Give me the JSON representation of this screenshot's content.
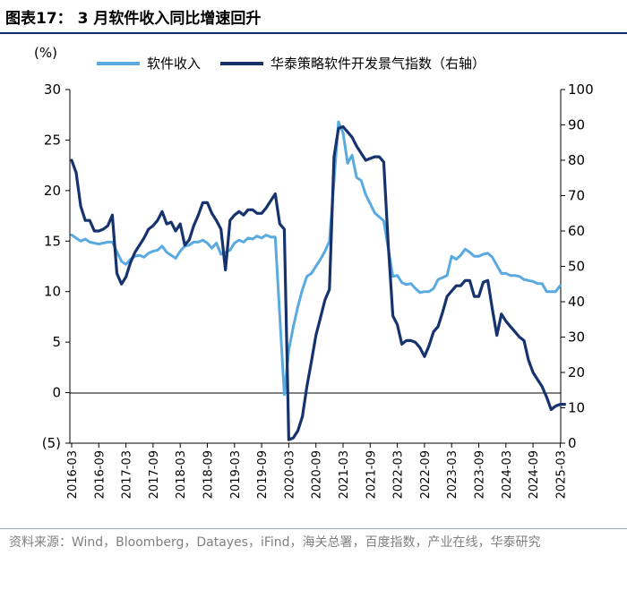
{
  "header": {
    "title": "图表17：  3 月软件收入同比增速回升"
  },
  "source": "资料来源：Wind，Bloomberg，Datayes，iFind，海关总署，百度指数，产业在线，华泰研究",
  "colors": {
    "revenue": "#5aaae0",
    "index": "#17336e",
    "title_rule": "#0d2b6b"
  },
  "chart_data": {
    "type": "line",
    "unit_left": "(%)",
    "y_left": {
      "range": [
        -5,
        30
      ],
      "ticks": [
        -5,
        0,
        5,
        10,
        15,
        20,
        25,
        30
      ],
      "tick_labels": [
        "(5)",
        "0",
        "5",
        "10",
        "15",
        "20",
        "25",
        "30"
      ]
    },
    "y_right": {
      "range": [
        0,
        100
      ],
      "ticks": [
        0,
        10,
        20,
        30,
        40,
        50,
        60,
        70,
        80,
        90,
        100
      ],
      "tick_labels": [
        "0",
        "10",
        "20",
        "30",
        "40",
        "50",
        "60",
        "70",
        "80",
        "90",
        "100"
      ]
    },
    "x_tick_labels": [
      "2016-03",
      "2016-09",
      "2017-03",
      "2017-09",
      "2018-03",
      "2018-09",
      "2019-03",
      "2019-09",
      "2020-03",
      "2020-09",
      "2021-03",
      "2021-09",
      "2022-03",
      "2022-09",
      "2023-03",
      "2023-09",
      "2024-03",
      "2024-09",
      "2025-03"
    ],
    "x_tick_dates": [
      "2016-03",
      "2016-09",
      "2017-03",
      "2017-09",
      "2018-03",
      "2018-09",
      "2019-03",
      "2019-09",
      "2020-03",
      "2020-09",
      "2021-03",
      "2021-09",
      "2022-03",
      "2022-09",
      "2023-03",
      "2023-09",
      "2024-03",
      "2024-09",
      "2025-03"
    ],
    "series": [
      {
        "name": "软件收入",
        "axis": "left",
        "color": "#5aaae0",
        "points": [
          [
            "2016-03",
            15.6
          ],
          [
            "2016-04",
            15.3
          ],
          [
            "2016-05",
            15.0
          ],
          [
            "2016-06",
            15.2
          ],
          [
            "2016-07",
            14.9
          ],
          [
            "2016-08",
            14.8
          ],
          [
            "2016-09",
            14.7
          ],
          [
            "2016-10",
            14.8
          ],
          [
            "2016-11",
            14.9
          ],
          [
            "2016-12",
            14.9
          ],
          [
            "2017-02",
            13.0
          ],
          [
            "2017-03",
            12.7
          ],
          [
            "2017-04",
            13.2
          ],
          [
            "2017-05",
            13.5
          ],
          [
            "2017-06",
            13.6
          ],
          [
            "2017-07",
            13.4
          ],
          [
            "2017-08",
            13.8
          ],
          [
            "2017-09",
            14.0
          ],
          [
            "2017-10",
            14.1
          ],
          [
            "2017-11",
            14.5
          ],
          [
            "2017-12",
            13.9
          ],
          [
            "2018-02",
            13.3
          ],
          [
            "2018-03",
            14.0
          ],
          [
            "2018-04",
            14.5
          ],
          [
            "2018-05",
            14.6
          ],
          [
            "2018-06",
            14.9
          ],
          [
            "2018-07",
            14.9
          ],
          [
            "2018-08",
            15.1
          ],
          [
            "2018-09",
            14.8
          ],
          [
            "2018-10",
            14.3
          ],
          [
            "2018-11",
            14.8
          ],
          [
            "2018-12",
            13.7
          ],
          [
            "2019-02",
            14.1
          ],
          [
            "2019-03",
            14.8
          ],
          [
            "2019-04",
            15.1
          ],
          [
            "2019-05",
            14.9
          ],
          [
            "2019-06",
            15.3
          ],
          [
            "2019-07",
            15.2
          ],
          [
            "2019-08",
            15.5
          ],
          [
            "2019-09",
            15.3
          ],
          [
            "2019-10",
            15.6
          ],
          [
            "2019-11",
            15.4
          ],
          [
            "2019-12",
            15.4
          ],
          [
            "2020-02",
            -0.2
          ],
          [
            "2020-03",
            4.2
          ],
          [
            "2020-04",
            6.5
          ],
          [
            "2020-05",
            8.5
          ],
          [
            "2020-06",
            10.2
          ],
          [
            "2020-07",
            11.5
          ],
          [
            "2020-08",
            11.8
          ],
          [
            "2020-09",
            12.5
          ],
          [
            "2020-10",
            13.2
          ],
          [
            "2020-11",
            14.0
          ],
          [
            "2020-12",
            15.0
          ],
          [
            "2021-02",
            26.8
          ],
          [
            "2021-03",
            25.7
          ],
          [
            "2021-04",
            22.7
          ],
          [
            "2021-05",
            23.5
          ],
          [
            "2021-06",
            21.3
          ],
          [
            "2021-07",
            21.0
          ],
          [
            "2021-08",
            19.6
          ],
          [
            "2021-09",
            18.7
          ],
          [
            "2021-10",
            17.8
          ],
          [
            "2021-11",
            17.4
          ],
          [
            "2021-12",
            17.0
          ],
          [
            "2022-02",
            11.5
          ],
          [
            "2022-03",
            11.6
          ],
          [
            "2022-04",
            10.9
          ],
          [
            "2022-05",
            10.7
          ],
          [
            "2022-06",
            10.8
          ],
          [
            "2022-07",
            10.3
          ],
          [
            "2022-08",
            9.9
          ],
          [
            "2022-09",
            10.0
          ],
          [
            "2022-10",
            10.0
          ],
          [
            "2022-11",
            10.3
          ],
          [
            "2022-12",
            11.2
          ],
          [
            "2023-02",
            11.6
          ],
          [
            "2023-03",
            13.5
          ],
          [
            "2023-04",
            13.2
          ],
          [
            "2023-05",
            13.6
          ],
          [
            "2023-06",
            14.2
          ],
          [
            "2023-07",
            13.9
          ],
          [
            "2023-08",
            13.5
          ],
          [
            "2023-09",
            13.5
          ],
          [
            "2023-10",
            13.7
          ],
          [
            "2023-11",
            13.8
          ],
          [
            "2023-12",
            13.4
          ],
          [
            "2024-02",
            11.8
          ],
          [
            "2024-03",
            11.8
          ],
          [
            "2024-04",
            11.6
          ],
          [
            "2024-05",
            11.6
          ],
          [
            "2024-06",
            11.5
          ],
          [
            "2024-07",
            11.2
          ],
          [
            "2024-08",
            11.1
          ],
          [
            "2024-09",
            11.0
          ],
          [
            "2024-10",
            10.8
          ],
          [
            "2024-11",
            10.8
          ],
          [
            "2024-12",
            10.0
          ],
          [
            "2025-02",
            10.0
          ],
          [
            "2025-03",
            10.6
          ]
        ]
      },
      {
        "name": "华泰策略软件开发景气指数（右轴）",
        "axis": "right",
        "color": "#17336e",
        "points": [
          [
            "2016-03",
            80.0
          ],
          [
            "2016-04",
            76.5
          ],
          [
            "2016-05",
            67.0
          ],
          [
            "2016-06",
            63.0
          ],
          [
            "2016-07",
            63.0
          ],
          [
            "2016-08",
            60.0
          ],
          [
            "2016-09",
            60.0
          ],
          [
            "2016-10",
            60.5
          ],
          [
            "2016-11",
            61.5
          ],
          [
            "2016-12",
            64.5
          ],
          [
            "2017-01",
            48.0
          ],
          [
            "2017-02",
            45.0
          ],
          [
            "2017-03",
            47.0
          ],
          [
            "2017-04",
            51.0
          ],
          [
            "2017-05",
            54.0
          ],
          [
            "2017-06",
            56.0
          ],
          [
            "2017-07",
            58.0
          ],
          [
            "2017-08",
            60.5
          ],
          [
            "2017-09",
            61.5
          ],
          [
            "2017-10",
            63.0
          ],
          [
            "2017-11",
            65.5
          ],
          [
            "2017-12",
            62.0
          ],
          [
            "2018-01",
            62.5
          ],
          [
            "2018-02",
            60.0
          ],
          [
            "2018-03",
            62.0
          ],
          [
            "2018-04",
            56.0
          ],
          [
            "2018-05",
            57.5
          ],
          [
            "2018-06",
            61.5
          ],
          [
            "2018-07",
            64.5
          ],
          [
            "2018-08",
            68.0
          ],
          [
            "2018-09",
            68.0
          ],
          [
            "2018-10",
            65.0
          ],
          [
            "2018-11",
            63.0
          ],
          [
            "2018-12",
            60.5
          ],
          [
            "2019-01",
            49.0
          ],
          [
            "2019-02",
            63.0
          ],
          [
            "2019-03",
            64.5
          ],
          [
            "2019-04",
            65.5
          ],
          [
            "2019-05",
            64.5
          ],
          [
            "2019-06",
            66.0
          ],
          [
            "2019-07",
            66.0
          ],
          [
            "2019-08",
            65.0
          ],
          [
            "2019-09",
            65.0
          ],
          [
            "2019-10",
            66.5
          ],
          [
            "2019-11",
            68.5
          ],
          [
            "2019-12",
            70.5
          ],
          [
            "2020-01",
            62.0
          ],
          [
            "2020-02",
            60.5
          ],
          [
            "2020-03",
            1.0
          ],
          [
            "2020-04",
            1.5
          ],
          [
            "2020-05",
            3.5
          ],
          [
            "2020-06",
            7.5
          ],
          [
            "2020-07",
            16.0
          ],
          [
            "2020-08",
            23.0
          ],
          [
            "2020-09",
            30.5
          ],
          [
            "2020-10",
            35.5
          ],
          [
            "2020-11",
            40.5
          ],
          [
            "2020-12",
            43.5
          ],
          [
            "2021-01",
            81.0
          ],
          [
            "2021-02",
            89.0
          ],
          [
            "2021-03",
            89.5
          ],
          [
            "2021-04",
            88.0
          ],
          [
            "2021-05",
            86.5
          ],
          [
            "2021-06",
            84.0
          ],
          [
            "2021-07",
            82.0
          ],
          [
            "2021-08",
            80.0
          ],
          [
            "2021-09",
            80.5
          ],
          [
            "2021-10",
            81.0
          ],
          [
            "2021-11",
            81.0
          ],
          [
            "2021-12",
            79.5
          ],
          [
            "2022-01",
            56.0
          ],
          [
            "2022-02",
            36.0
          ],
          [
            "2022-03",
            33.5
          ],
          [
            "2022-04",
            28.0
          ],
          [
            "2022-05",
            29.0
          ],
          [
            "2022-06",
            29.0
          ],
          [
            "2022-07",
            28.5
          ],
          [
            "2022-08",
            27.0
          ],
          [
            "2022-09",
            24.5
          ],
          [
            "2022-10",
            27.5
          ],
          [
            "2022-11",
            31.5
          ],
          [
            "2022-12",
            33.0
          ],
          [
            "2023-01",
            37.0
          ],
          [
            "2023-02",
            41.5
          ],
          [
            "2023-03",
            43.0
          ],
          [
            "2023-04",
            44.5
          ],
          [
            "2023-05",
            44.5
          ],
          [
            "2023-06",
            46.0
          ],
          [
            "2023-07",
            46.0
          ],
          [
            "2023-08",
            41.5
          ],
          [
            "2023-09",
            41.5
          ],
          [
            "2023-10",
            45.5
          ],
          [
            "2023-11",
            46.0
          ],
          [
            "2023-12",
            38.0
          ],
          [
            "2024-01",
            30.5
          ],
          [
            "2024-02",
            36.5
          ],
          [
            "2024-03",
            34.5
          ],
          [
            "2024-04",
            33.0
          ],
          [
            "2024-05",
            31.5
          ],
          [
            "2024-06",
            30.0
          ],
          [
            "2024-07",
            29.0
          ],
          [
            "2024-08",
            23.5
          ],
          [
            "2024-09",
            20.0
          ],
          [
            "2024-10",
            18.0
          ],
          [
            "2024-11",
            16.0
          ],
          [
            "2024-12",
            13.0
          ],
          [
            "2025-01",
            9.5
          ],
          [
            "2025-02",
            10.5
          ],
          [
            "2025-03",
            11.0
          ],
          [
            "2025-04",
            11.0
          ]
        ]
      }
    ]
  }
}
